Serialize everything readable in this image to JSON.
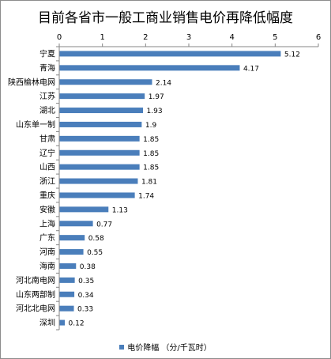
{
  "chart_data": {
    "type": "bar",
    "orientation": "horizontal",
    "title": "目前各省市一般工商业销售电价再降低幅度",
    "categories": [
      "宁夏",
      "青海",
      "陕西榆林电网",
      "江苏",
      "湖北",
      "山东单一制",
      "甘肃",
      "辽宁",
      "山西",
      "浙江",
      "重庆",
      "安徽",
      "上海",
      "广东",
      "河南",
      "海南",
      "河北南电网",
      "山东两部制",
      "河北北电网",
      "深圳"
    ],
    "series": [
      {
        "name": "电价降幅 （分/千瓦时）",
        "values": [
          5.12,
          4.17,
          2.14,
          1.97,
          1.93,
          1.9,
          1.85,
          1.85,
          1.85,
          1.81,
          1.74,
          1.13,
          0.77,
          0.58,
          0.55,
          0.38,
          0.35,
          0.34,
          0.33,
          0.12
        ],
        "value_labels": [
          "5.12",
          "4.17",
          "2.14",
          "1.97",
          "1.93",
          "1.9",
          "1.85",
          "1.85",
          "1.85",
          "1.81",
          "1.74",
          "1.13",
          "0.77",
          "0.58",
          "0.55",
          "0.38",
          "0.35",
          "0.34",
          "0.33",
          "0.12"
        ]
      }
    ],
    "xlim": [
      0,
      6
    ],
    "xticks": [
      "0",
      "1",
      "2",
      "3",
      "4",
      "5",
      "6"
    ],
    "x_axis_position": "top",
    "grid": false,
    "legend_placement": "bottom",
    "bar_color": "#4a7ebb"
  }
}
